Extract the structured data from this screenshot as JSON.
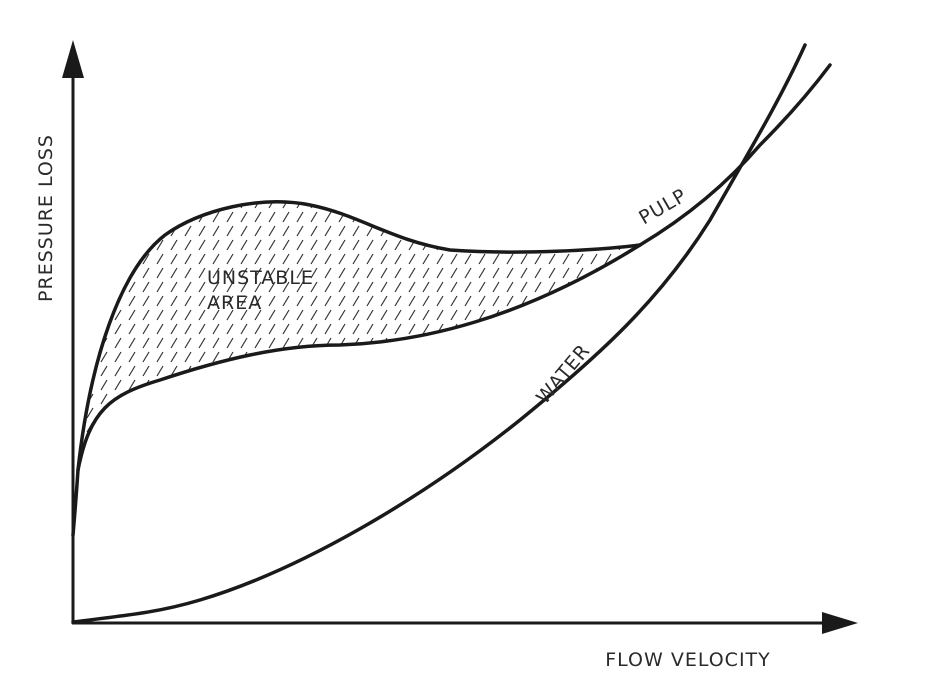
{
  "axes": {
    "y_label": "PRESSURE LOSS",
    "x_label": "FLOW VELOCITY"
  },
  "region": {
    "label_lines": [
      "UNSTABLE",
      "AREA"
    ]
  },
  "curves": [
    {
      "label": "PULP"
    },
    {
      "label": "WATER"
    }
  ]
}
